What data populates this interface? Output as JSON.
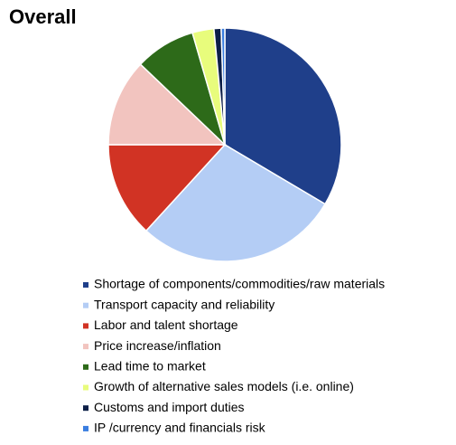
{
  "chart_data": {
    "type": "pie",
    "title": "Overall",
    "categories": [
      "Shortage of components/commodities/raw materials",
      "Transport capacity and reliability",
      "Labor and talent shortage",
      "Price increase/inflation",
      "Lead time to market",
      "Growth of alternative sales models (i.e. online)",
      "Customs and import duties",
      "IP /currency and financials risk"
    ],
    "values": [
      33.5,
      28.3,
      13.2,
      12.1,
      8.4,
      3.0,
      1.0,
      0.5
    ],
    "colors": [
      "#1f3f8a",
      "#b4cdf5",
      "#d13324",
      "#f2c4bf",
      "#2d6a19",
      "#e8fc7c",
      "#0d1f47",
      "#3a7ee0"
    ],
    "legend": "bottom"
  }
}
